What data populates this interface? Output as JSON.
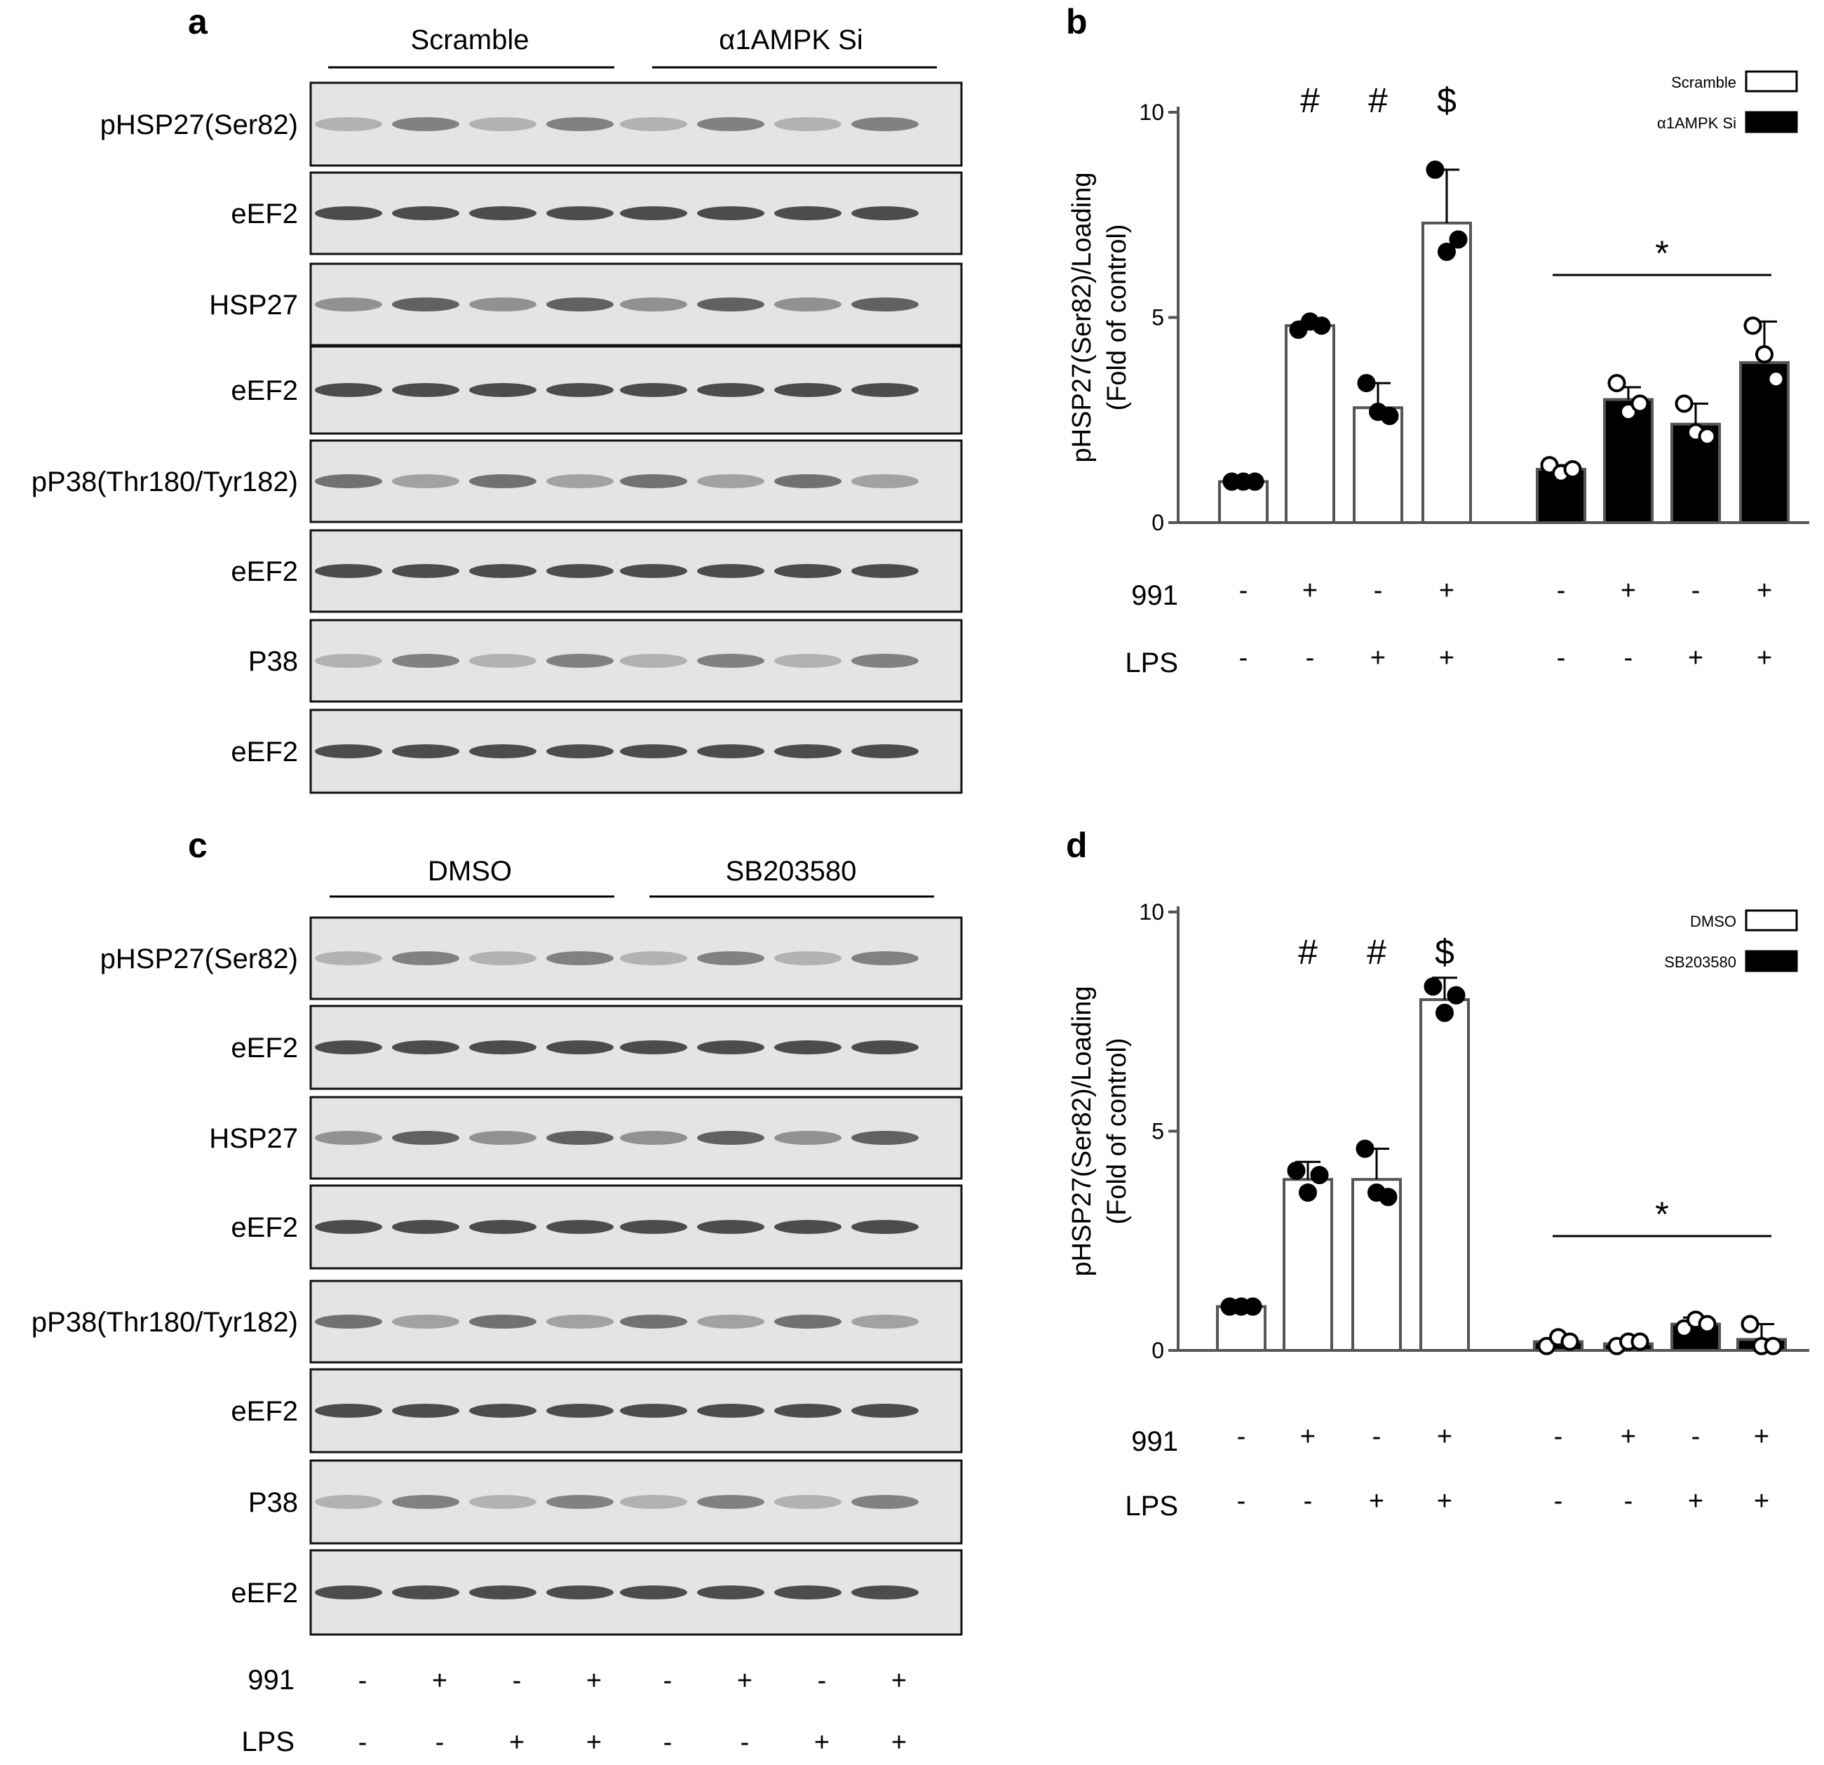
{
  "panels": {
    "a": {
      "letter": "a",
      "groups": [
        "Scramble",
        "α1AMPK Si"
      ],
      "blots": [
        "pHSP27(Ser82)",
        "eEF2",
        "HSP27",
        "eEF2",
        "pP38(Thr180/Tyr182)",
        "eEF2",
        "P38",
        "eEF2"
      ]
    },
    "c": {
      "letter": "c",
      "groups": [
        "DMSO",
        "SB203580"
      ],
      "blots": [
        "pHSP27(Ser82)",
        "eEF2",
        "HSP27",
        "eEF2",
        "pP38(Thr180/Tyr182)",
        "eEF2",
        "P38",
        "eEF2"
      ],
      "treatments": [
        {
          "label": "991",
          "signs": [
            "-",
            "+",
            "-",
            "+",
            "-",
            "+",
            "-",
            "+"
          ]
        },
        {
          "label": "LPS",
          "signs": [
            "-",
            "-",
            "+",
            "+",
            "-",
            "-",
            "+",
            "+"
          ]
        }
      ]
    }
  },
  "colors": {
    "open_bar": "#ffffff",
    "filled_bar": "#000000",
    "stroke": "#000000",
    "axis": "#555555",
    "blot_bg": "#e4e4e4"
  },
  "chart_data": [
    {
      "panel": "b",
      "type": "bar",
      "title": "",
      "ylabel": "pHSP27(Ser82)/Loading",
      "ylabel2": "(Fold of control)",
      "ylim": [
        0,
        10
      ],
      "yticks": [
        "0",
        "5",
        "10"
      ],
      "legend": [
        {
          "name": "Scramble",
          "fill": "open"
        },
        {
          "name": "α1AMPK Si",
          "fill": "filled"
        }
      ],
      "legend_position": "top-right",
      "series": [
        {
          "name": "Scramble",
          "fill": "open",
          "values": [
            1.0,
            4.8,
            2.8,
            7.3
          ],
          "errors": [
            0.05,
            0.1,
            0.6,
            1.3
          ],
          "points": [
            [
              1.0,
              1.0,
              1.0
            ],
            [
              4.7,
              4.9,
              4.8
            ],
            [
              3.4,
              2.7,
              2.6
            ],
            [
              8.6,
              6.6,
              6.9
            ]
          ],
          "annotations": [
            "",
            "#",
            "#",
            "$"
          ]
        },
        {
          "name": "α1AMPK Si",
          "fill": "filled",
          "values": [
            1.3,
            3.0,
            2.4,
            3.9
          ],
          "errors": [
            0.1,
            0.3,
            0.5,
            1.0
          ],
          "points": [
            [
              1.4,
              1.2,
              1.3
            ],
            [
              3.4,
              2.7,
              2.9
            ],
            [
              2.9,
              2.2,
              2.1
            ],
            [
              4.8,
              4.1,
              3.5
            ]
          ],
          "annotations": [
            "",
            "",
            "",
            ""
          ]
        }
      ],
      "significance": "*",
      "treatments": [
        {
          "label": "991",
          "signs": [
            "-",
            "+",
            "-",
            "+",
            "-",
            "+",
            "-",
            "+"
          ]
        },
        {
          "label": "LPS",
          "signs": [
            "-",
            "-",
            "+",
            "+",
            "-",
            "-",
            "+",
            "+"
          ]
        }
      ]
    },
    {
      "panel": "d",
      "type": "bar",
      "title": "",
      "ylabel": "pHSP27(Ser82)/Loading",
      "ylabel2": "(Fold of control)",
      "ylim": [
        0,
        10
      ],
      "yticks": [
        "0",
        "5",
        "10"
      ],
      "legend": [
        {
          "name": "DMSO",
          "fill": "open"
        },
        {
          "name": "SB203580",
          "fill": "filled"
        }
      ],
      "legend_position": "top-right",
      "series": [
        {
          "name": "DMSO",
          "fill": "open",
          "values": [
            1.0,
            3.9,
            3.9,
            8.0
          ],
          "errors": [
            0.05,
            0.4,
            0.7,
            0.5
          ],
          "points": [
            [
              1.0,
              1.0,
              1.0
            ],
            [
              4.1,
              3.6,
              4.0
            ],
            [
              4.6,
              3.6,
              3.5
            ],
            [
              8.3,
              7.7,
              8.1
            ]
          ],
          "annotations": [
            "",
            "#",
            "#",
            "$"
          ]
        },
        {
          "name": "SB203580",
          "fill": "filled",
          "values": [
            0.2,
            0.15,
            0.6,
            0.25
          ],
          "errors": [
            0.05,
            0.05,
            0.15,
            0.35
          ],
          "points": [
            [
              0.1,
              0.3,
              0.2
            ],
            [
              0.1,
              0.2,
              0.2
            ],
            [
              0.5,
              0.7,
              0.6
            ],
            [
              0.6,
              0.1,
              0.1
            ]
          ],
          "annotations": [
            "",
            "",
            "",
            ""
          ]
        }
      ],
      "significance": "*",
      "treatments": [
        {
          "label": "991",
          "signs": [
            "-",
            "+",
            "-",
            "+",
            "-",
            "+",
            "-",
            "+"
          ]
        },
        {
          "label": "LPS",
          "signs": [
            "-",
            "-",
            "+",
            "+",
            "-",
            "-",
            "+",
            "+"
          ]
        }
      ]
    }
  ]
}
